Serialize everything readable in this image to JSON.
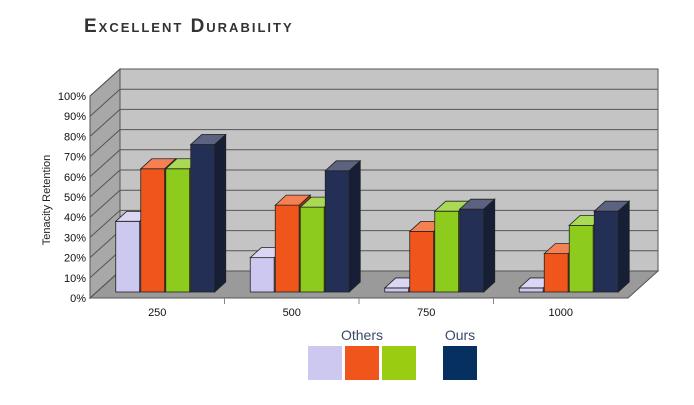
{
  "chart_data": {
    "type": "bar",
    "title": "Excellent Durability",
    "xlabel": "",
    "ylabel": "Tenacity Retention",
    "categories": [
      "250",
      "500",
      "750",
      "1000"
    ],
    "ylim": [
      0,
      100
    ],
    "yticks": [
      "0%",
      "10%",
      "20%",
      "30%",
      "40%",
      "50%",
      "60%",
      "70%",
      "80%",
      "90%",
      "100%"
    ],
    "series": [
      {
        "values": [
          35,
          17,
          2,
          2
        ],
        "color": "#cdc8f0"
      },
      {
        "values": [
          61,
          43,
          30,
          19
        ],
        "color": "#f0561b"
      },
      {
        "values": [
          61,
          42,
          40,
          33
        ],
        "color": "#8dcc1c"
      },
      {
        "values": [
          73,
          60,
          41,
          40
        ],
        "color": "#242f55"
      }
    ],
    "legend": {
      "groups": [
        {
          "label": "Others",
          "colors": [
            "#cdc8f0",
            "#f0561b",
            "#9acd12"
          ]
        },
        {
          "label": "Ours",
          "colors": [
            "#06305f"
          ]
        }
      ]
    },
    "grid": true,
    "style": "3d"
  }
}
